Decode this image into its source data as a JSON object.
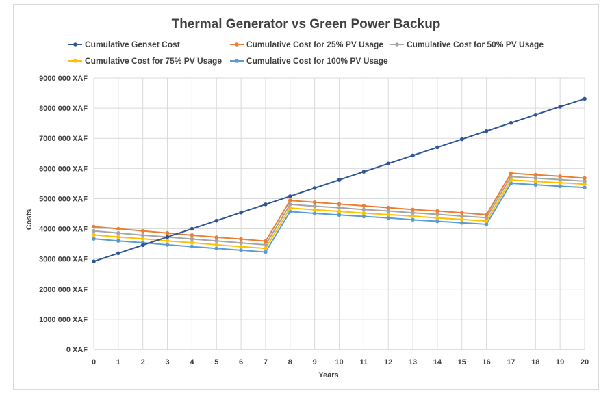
{
  "chart_data": {
    "type": "line",
    "title": "Thermal Generator vs Green Power Backup",
    "xlabel": "Years",
    "ylabel": "Costs",
    "x": [
      0,
      1,
      2,
      3,
      4,
      5,
      6,
      7,
      8,
      9,
      10,
      11,
      12,
      13,
      14,
      15,
      16,
      17,
      18,
      19,
      20
    ],
    "ylim": [
      0,
      9000000
    ],
    "yticks": [
      0,
      1000000,
      2000000,
      3000000,
      4000000,
      5000000,
      6000000,
      7000000,
      8000000,
      9000000
    ],
    "ytick_labels": [
      "0 XAF",
      "1000 000 XAF",
      "2000 000 XAF",
      "3000 000 XAF",
      "4000 000 XAF",
      "5000 000 XAF",
      "6000 000 XAF",
      "7000 000 XAF",
      "8000 000 XAF",
      "9000 000 XAF"
    ],
    "grid": "vertical and horizontal",
    "legend_position": "top",
    "series": [
      {
        "name": "Cumulative Genset Cost",
        "color": "#2f5597",
        "values": [
          2920000,
          3190000,
          3460000,
          3730000,
          4000000,
          4270000,
          4540000,
          4810000,
          5080000,
          5350000,
          5620000,
          5890000,
          6160000,
          6430000,
          6700000,
          6970000,
          7240000,
          7510000,
          7780000,
          8050000,
          8310000
        ]
      },
      {
        "name": "Cumulative Cost for 25% PV Usage",
        "color": "#ed7d31",
        "values": [
          4070000,
          4000000,
          3930000,
          3860000,
          3790000,
          3720000,
          3660000,
          3590000,
          4940000,
          4880000,
          4820000,
          4760000,
          4700000,
          4640000,
          4590000,
          4530000,
          4470000,
          5840000,
          5790000,
          5740000,
          5680000
        ]
      },
      {
        "name": "Cumulative Cost for 50% PV Usage",
        "color": "#a5a5a5",
        "values": [
          3930000,
          3860000,
          3790000,
          3730000,
          3660000,
          3600000,
          3530000,
          3470000,
          4810000,
          4750000,
          4700000,
          4640000,
          4590000,
          4530000,
          4480000,
          4420000,
          4370000,
          5730000,
          5680000,
          5630000,
          5580000
        ]
      },
      {
        "name": "Cumulative Cost for 75% PV Usage",
        "color": "#ffc000",
        "values": [
          3800000,
          3730000,
          3670000,
          3600000,
          3540000,
          3470000,
          3410000,
          3350000,
          4690000,
          4630000,
          4580000,
          4520000,
          4470000,
          4420000,
          4360000,
          4310000,
          4260000,
          5620000,
          5570000,
          5530000,
          5480000
        ]
      },
      {
        "name": "Cumulative Cost for 100% PV Usage",
        "color": "#5b9bd5",
        "values": [
          3670000,
          3600000,
          3540000,
          3470000,
          3410000,
          3350000,
          3290000,
          3230000,
          4570000,
          4510000,
          4460000,
          4410000,
          4360000,
          4300000,
          4250000,
          4200000,
          4150000,
          5510000,
          5460000,
          5410000,
          5370000
        ]
      }
    ]
  }
}
